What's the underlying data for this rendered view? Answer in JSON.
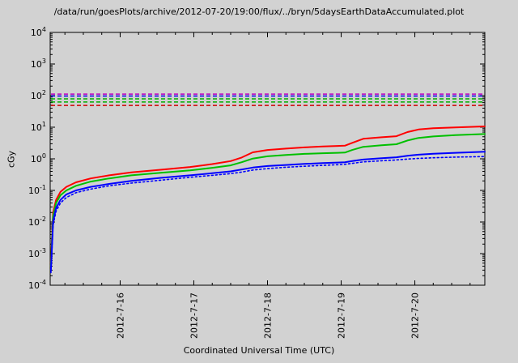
{
  "chart_data": {
    "type": "line",
    "title": "/data/run/goesPlots/archive/2012-07-20/19:00/flux/../bryn/5daysEarthDataAccumulated.plot",
    "xlabel": "Coordinated Universal Time (UTC)",
    "ylabel": "cGy",
    "y_scale": "log10",
    "ylim_exponents": [
      -4,
      4
    ],
    "xlim": [
      0,
      5.9
    ],
    "x_ticks": [
      {
        "x": 0.95,
        "label": "2012-7-16"
      },
      {
        "x": 1.95,
        "label": "2012-7-17"
      },
      {
        "x": 2.95,
        "label": "2012-7-18"
      },
      {
        "x": 3.95,
        "label": "2012-7-19"
      },
      {
        "x": 4.95,
        "label": "2012-7-20"
      }
    ],
    "x_minor_start": 0.2,
    "x_minor_step": 0.25,
    "grid": false,
    "legend": "none",
    "thresholds": [
      {
        "name": "limit-magenta",
        "value": 112,
        "color": "#c000c0"
      },
      {
        "name": "limit-blue",
        "value": 97,
        "color": "#0000e0"
      },
      {
        "name": "limit-green-upper",
        "value": 79,
        "color": "#00b000"
      },
      {
        "name": "limit-green-lower",
        "value": 63,
        "color": "#00b000"
      },
      {
        "name": "limit-red",
        "value": 49,
        "color": "#d00000"
      }
    ],
    "x": [
      0.01,
      0.04,
      0.08,
      0.14,
      0.22,
      0.35,
      0.55,
      0.8,
      1.1,
      1.5,
      1.9,
      2.2,
      2.45,
      2.6,
      2.75,
      2.95,
      3.2,
      3.45,
      3.7,
      3.9,
      4.0,
      4.1,
      4.25,
      4.5,
      4.7,
      4.85,
      5.0,
      5.2,
      5.5,
      5.9
    ],
    "series": [
      {
        "name": "accumulated-dose-red",
        "color": "#ff0000",
        "style": "solid",
        "values": [
          0.0005,
          0.02,
          0.05,
          0.09,
          0.13,
          0.18,
          0.24,
          0.3,
          0.37,
          0.45,
          0.55,
          0.68,
          0.85,
          1.1,
          1.6,
          1.9,
          2.1,
          2.3,
          2.45,
          2.55,
          2.6,
          3.2,
          4.3,
          4.8,
          5.2,
          7.0,
          8.5,
          9.3,
          9.9,
          10.6
        ]
      },
      {
        "name": "accumulated-dose-green",
        "color": "#00c000",
        "style": "solid",
        "values": [
          0.0004,
          0.015,
          0.04,
          0.07,
          0.1,
          0.14,
          0.19,
          0.24,
          0.3,
          0.36,
          0.43,
          0.52,
          0.62,
          0.78,
          1.02,
          1.2,
          1.33,
          1.43,
          1.5,
          1.55,
          1.58,
          1.9,
          2.4,
          2.7,
          2.9,
          3.8,
          4.6,
          5.1,
          5.6,
          6.1
        ]
      },
      {
        "name": "accumulated-dose-blue",
        "color": "#0000ff",
        "style": "solid",
        "values": [
          0.0003,
          0.01,
          0.028,
          0.05,
          0.075,
          0.1,
          0.13,
          0.16,
          0.2,
          0.25,
          0.3,
          0.35,
          0.4,
          0.46,
          0.53,
          0.59,
          0.64,
          0.69,
          0.73,
          0.76,
          0.78,
          0.85,
          0.95,
          1.05,
          1.12,
          1.25,
          1.35,
          1.45,
          1.55,
          1.67
        ]
      },
      {
        "name": "accumulated-dose-blue-dotted",
        "color": "#0000ff",
        "style": "dotted",
        "values": [
          0.00025,
          0.008,
          0.022,
          0.04,
          0.06,
          0.085,
          0.11,
          0.14,
          0.17,
          0.21,
          0.26,
          0.3,
          0.34,
          0.38,
          0.44,
          0.49,
          0.54,
          0.58,
          0.62,
          0.65,
          0.67,
          0.72,
          0.8,
          0.87,
          0.92,
          0.98,
          1.03,
          1.08,
          1.13,
          1.18
        ]
      }
    ]
  }
}
